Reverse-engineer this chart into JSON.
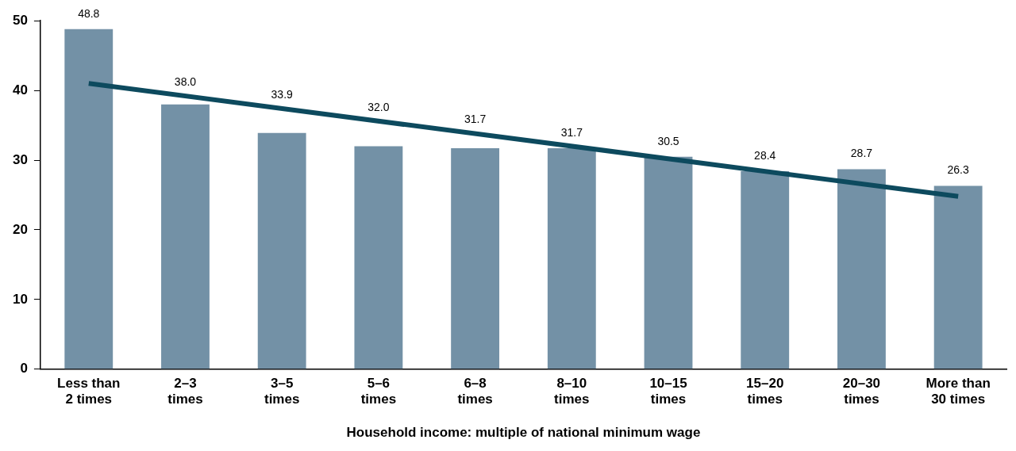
{
  "chart_data": {
    "type": "bar",
    "xlabel": "Household income: multiple of national minimum wage",
    "categories": [
      "Less than\n2 times",
      "2–3\ntimes",
      "3–5\ntimes",
      "5–6\ntimes",
      "6–8\ntimes",
      "8–10\ntimes",
      "10–15\ntimes",
      "15–20\ntimes",
      "20–30\ntimes",
      "More than\n30 times"
    ],
    "series": [
      {
        "color": "#7391a6",
        "values": [
          48.8,
          38.0,
          33.9,
          32.0,
          31.7,
          31.7,
          30.5,
          28.4,
          28.7,
          26.3
        ],
        "value_labels": [
          "48.8",
          "38.0",
          "33.9",
          "32.0",
          "31.7",
          "31.7",
          "30.5",
          "28.4",
          "28.7",
          "26.3"
        ]
      },
      {
        "type": "line",
        "color": "#0d4a5e",
        "x": [
          "Less than\n2 times",
          "More than\n30 times"
        ],
        "values": [
          41.0,
          24.8
        ]
      }
    ],
    "ylim": [
      0,
      50
    ],
    "yticks": [
      0,
      10,
      20,
      30,
      40,
      50
    ],
    "grid": false,
    "legend": false,
    "marker": "none",
    "line_style": "solid"
  }
}
